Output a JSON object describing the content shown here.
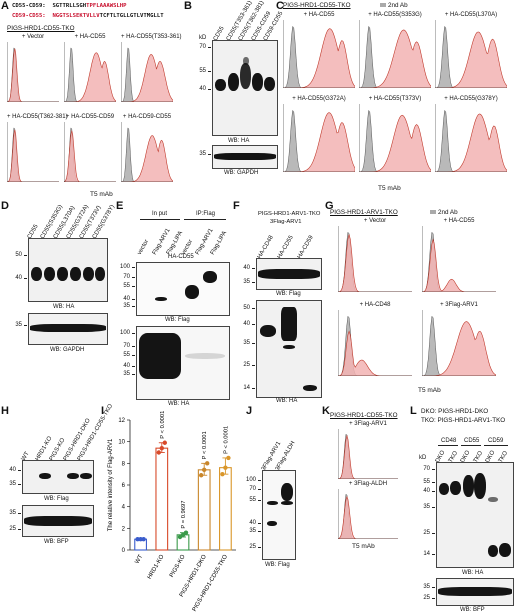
{
  "panels": {
    "A": "A",
    "B": "B",
    "C": "C",
    "D": "D",
    "E": "E",
    "F": "F",
    "G": "G",
    "H": "H",
    "I": "I",
    "J": "J",
    "K": "K",
    "L": "L"
  },
  "panelA": {
    "seq1_name": "CD55-CD59:",
    "seq1_a": "SGTTRLLSGH",
    "seq1_b": "TPFLAAAWSLHP",
    "seq2_name": "CD59-CD55:",
    "seq2_a": "NGGTSLSEKTVLLV",
    "seq2_b": "TCFTLTGLLGTLVTMGLLT",
    "title": "PIGS-HRD1-CD55-TKO",
    "hist": [
      "+ Vector",
      "+ HA-CD55",
      "+ HA-CD55(T353-361)",
      "+ HA-CD55(T362-381)",
      "+ HA-CD55-CD59",
      "+ HA-CD59-CD55"
    ],
    "xlabel": "T5 mAb"
  },
  "panelB": {
    "lanes": [
      "CD55",
      "CD55(T353-361)",
      "CD55(T362-381)",
      "CD55-CD59",
      "CD59-CD55"
    ],
    "kd": "kD",
    "mw_top": [
      "70",
      "55",
      "40"
    ],
    "mw_bot": [
      "35"
    ],
    "wb_top": "WB: HA",
    "wb_bot": "WB: GAPDH"
  },
  "panelC": {
    "title": "PIGS-HRD1-CD55-TKO",
    "legend": "2nd Ab",
    "hist": [
      "+ HA-CD55",
      "+ HA-CD55(S353G)",
      "+ HA-CD55(L370A)",
      "+ HA-CD55(G372A)",
      "+ HA-CD55(T373V)",
      "+ HA-CD55(G378Y)"
    ],
    "xlabel": "T5 mAb"
  },
  "panelD": {
    "lanes": [
      "CD55",
      "CD55(S353G)",
      "CD55(L370A)",
      "CD55(G372A)",
      "CD55(T373V)",
      "CD55(G378Y)"
    ],
    "mw_top": [
      "50",
      "40"
    ],
    "mw_bot": [
      "35"
    ],
    "wb_top": "WB: HA",
    "wb_bot": "WB: GAPDH"
  },
  "panelE": {
    "input": "In put",
    "ip": "IP:Flag",
    "lanes": [
      "vector",
      "Flag-ARV1",
      "Flag-LIPA",
      "vector",
      "Flag-ARV1",
      "Flag-LIPA"
    ],
    "row": "HA-CD55",
    "mw_top": [
      "100",
      "70",
      "55",
      "40",
      "35"
    ],
    "mw_bot": [
      "100",
      "70",
      "55",
      "40",
      "35"
    ],
    "wb_top": "WB: Flag",
    "wb_bot": "WB: HA"
  },
  "panelF": {
    "title1": "PIGS-HRD1-ARV1-TKO",
    "title2": "3Flag-ARV1",
    "lanes": [
      "HA-CD48",
      "HA-CD55",
      "HA-CD59"
    ],
    "mw_top": [
      "40",
      "35"
    ],
    "mw_bot": [
      "50",
      "40",
      "35",
      "25",
      "14"
    ],
    "wb_top": "WB: Flag",
    "wb_bot": "WB: HA"
  },
  "panelG": {
    "title": "PIGS-HRD1-ARV1-TKO",
    "legend": "2nd Ab",
    "hist": [
      "+ Vector",
      "+ HA-CD55",
      "+ HA-CD48",
      "+ 3Flag-ARV1"
    ],
    "xlabel": "T5 mAb"
  },
  "panelH": {
    "lanes": [
      "WT",
      "HRD1-KO",
      "PIGS-KO",
      "PIGS-HRD1-DKO",
      "PIGS-HRD1-CD55-TKO"
    ],
    "mw_top": [
      "40",
      "35"
    ],
    "mw_bot": [
      "35",
      "25"
    ],
    "wb_top": "WB: Flag",
    "wb_bot": "WB: BFP"
  },
  "panelI": {
    "ylabel": "The relative intensity of Flag-ARV1",
    "yticks": [
      "0",
      "2",
      "4",
      "6",
      "8",
      "10",
      "12"
    ]
  },
  "chart_data": {
    "type": "bar",
    "categories": [
      "WT",
      "HRD1-KO",
      "PIGS-KO",
      "PIGS-HRD1-DKO",
      "PIGS-HRD1-CD55-TKO"
    ],
    "values": [
      1.0,
      9.4,
      1.4,
      7.4,
      7.6
    ],
    "points": [
      [
        1.0,
        1.0,
        1.0
      ],
      [
        9.0,
        9.4,
        9.9
      ],
      [
        1.2,
        1.4,
        1.6
      ],
      [
        6.9,
        7.4,
        8.0
      ],
      [
        7.0,
        7.6,
        8.5
      ]
    ],
    "pvalues": [
      "",
      "P < 0.0001",
      "P = 0.9697",
      "P < 0.0001",
      "P < 0.0001"
    ],
    "colors": [
      "#3a5ccc",
      "#d84a2a",
      "#3a9a4a",
      "#c9862a",
      "#d9962a"
    ],
    "ylabel": "The relative intensity of Flag-ARV1",
    "ylim": [
      0,
      12
    ]
  },
  "panelJ": {
    "lanes": [
      "3Flag-ARV1",
      "3Flag-ALDH"
    ],
    "mw": [
      "100",
      "70",
      "55",
      "40",
      "35",
      "25"
    ],
    "wb": "WB: Flag"
  },
  "panelK": {
    "title": "PIGS-HRD1-CD55-TKO",
    "hist": [
      "+ 3Flag-ARV1",
      "+ 3Flag-ALDH"
    ],
    "xlabel": "T5 mAb"
  },
  "panelL": {
    "dko": "DKO: PIGS-HRD1-DKO",
    "tko": "TKO: PIGS-HRD1-ARV1-TKO",
    "groups": [
      "CD48",
      "CD55",
      "CD59"
    ],
    "lanes": [
      "DKO",
      "TKO",
      "DKO",
      "TKO",
      "DKO",
      "TKO"
    ],
    "kd": "kD",
    "mw_top": [
      "70",
      "55",
      "40",
      "35",
      "25",
      "14"
    ],
    "mw_bot": [
      "35",
      "25"
    ],
    "wb_top": "WB: HA",
    "wb_bot": "WB: BFP"
  }
}
